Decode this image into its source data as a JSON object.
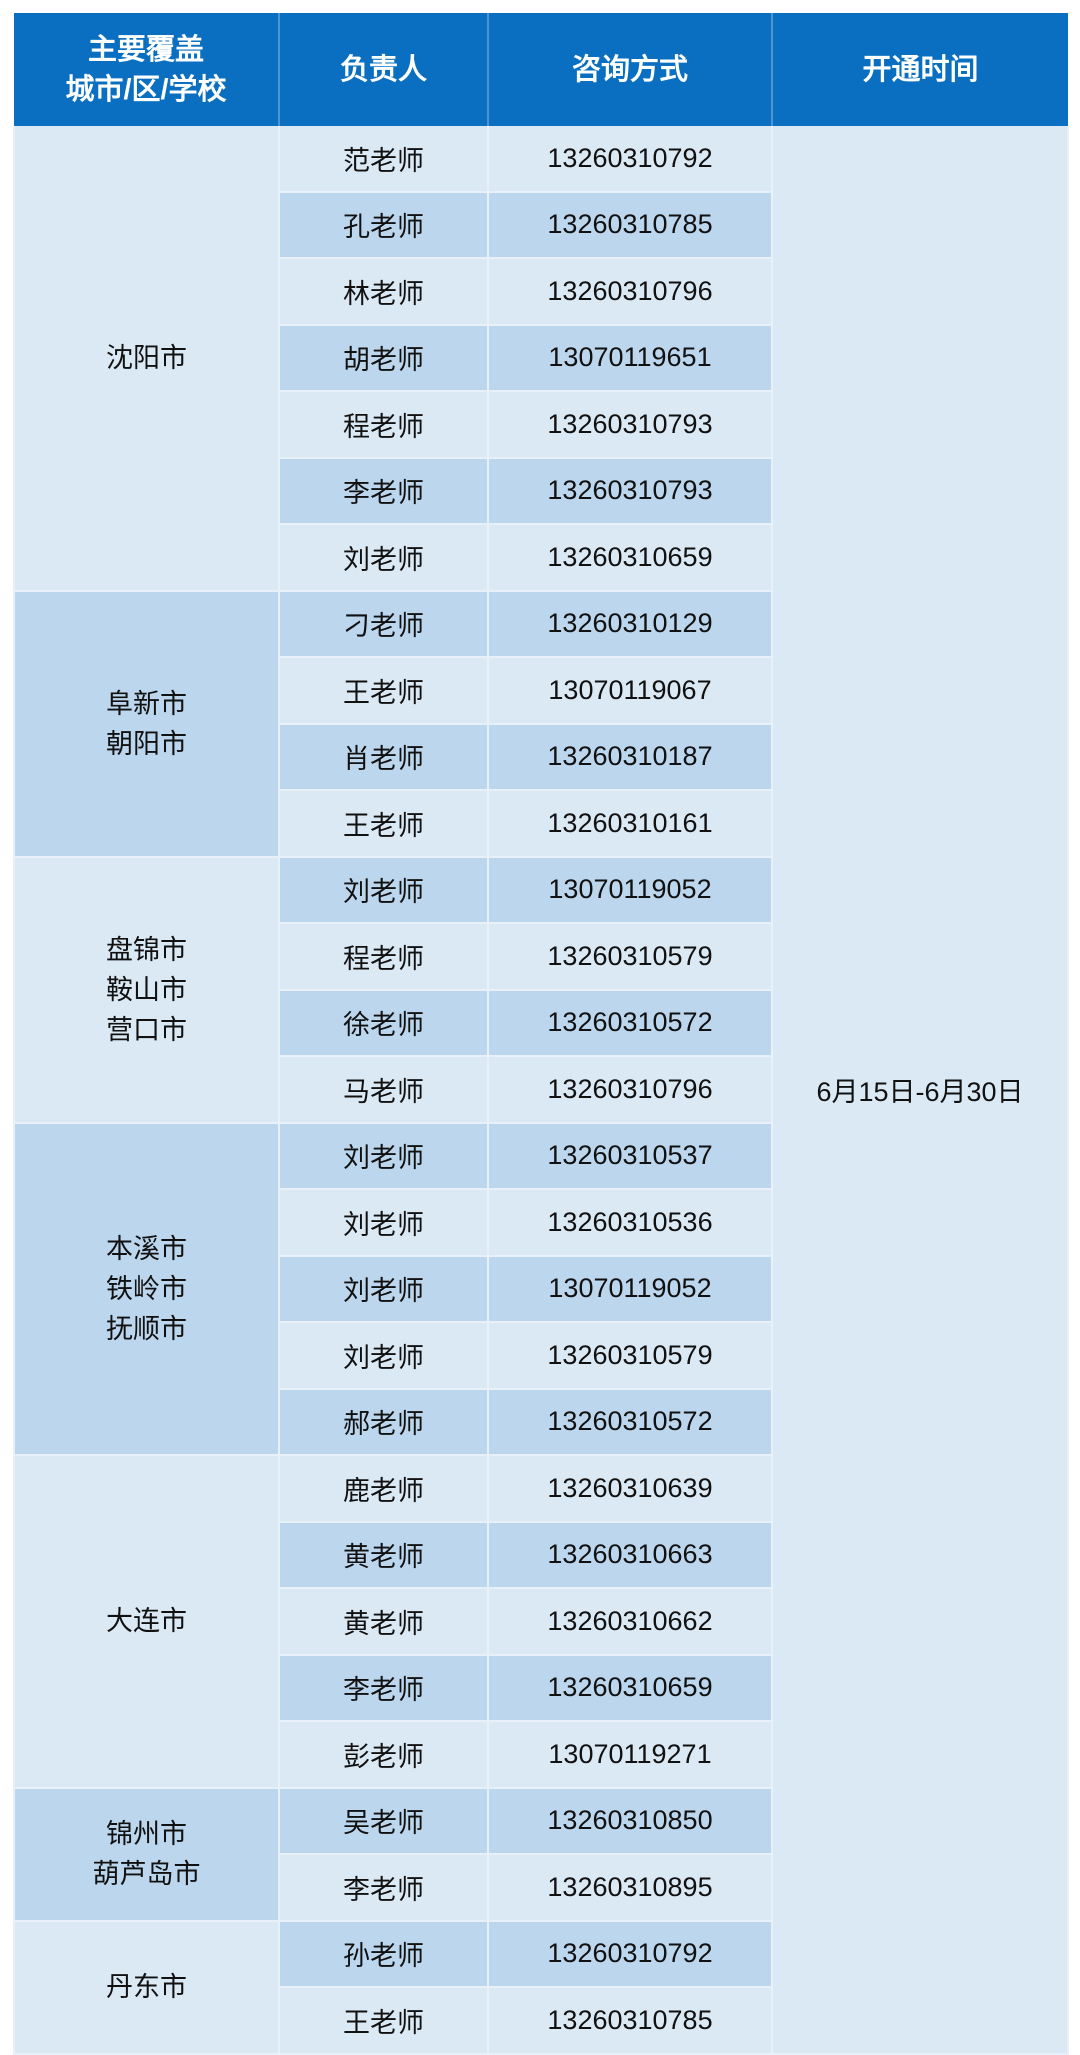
{
  "header": {
    "col1": "主要覆盖\n城市/区/学校",
    "col2": "负责人",
    "col3": "咨询方式",
    "col4": "开通时间"
  },
  "open_time": "6月15日-6月30日",
  "colors": {
    "header": "#0a6fc0",
    "row_light": "#dbe9f5",
    "row_dark": "#bcd6ee"
  },
  "groups": [
    {
      "region": "沈阳市",
      "contacts": [
        {
          "name": "范老师",
          "phone": "13260310792"
        },
        {
          "name": "孔老师",
          "phone": "13260310785"
        },
        {
          "name": "林老师",
          "phone": "13260310796"
        },
        {
          "name": "胡老师",
          "phone": "13070119651"
        },
        {
          "name": "程老师",
          "phone": "13260310793"
        },
        {
          "name": "李老师",
          "phone": "13260310793"
        },
        {
          "name": "刘老师",
          "phone": "13260310659"
        }
      ]
    },
    {
      "region": "阜新市\n朝阳市",
      "contacts": [
        {
          "name": "刁老师",
          "phone": "13260310129"
        },
        {
          "name": "王老师",
          "phone": "13070119067"
        },
        {
          "name": "肖老师",
          "phone": "13260310187"
        },
        {
          "name": "王老师",
          "phone": "13260310161"
        }
      ]
    },
    {
      "region": "盘锦市\n鞍山市\n营口市",
      "contacts": [
        {
          "name": "刘老师",
          "phone": "13070119052"
        },
        {
          "name": "程老师",
          "phone": "13260310579"
        },
        {
          "name": "徐老师",
          "phone": "13260310572"
        },
        {
          "name": "马老师",
          "phone": "13260310796"
        }
      ]
    },
    {
      "region": "本溪市\n铁岭市\n抚顺市",
      "contacts": [
        {
          "name": "刘老师",
          "phone": "13260310537"
        },
        {
          "name": "刘老师",
          "phone": "13260310536"
        },
        {
          "name": "刘老师",
          "phone": "13070119052"
        },
        {
          "name": "刘老师",
          "phone": "13260310579"
        },
        {
          "name": "郝老师",
          "phone": "13260310572"
        }
      ]
    },
    {
      "region": "大连市",
      "contacts": [
        {
          "name": "鹿老师",
          "phone": "13260310639"
        },
        {
          "name": "黄老师",
          "phone": "13260310663"
        },
        {
          "name": "黄老师",
          "phone": "13260310662"
        },
        {
          "name": "李老师",
          "phone": "13260310659"
        },
        {
          "name": "彭老师",
          "phone": "13070119271"
        }
      ]
    },
    {
      "region": "锦州市\n葫芦岛市",
      "contacts": [
        {
          "name": "吴老师",
          "phone": "13260310850"
        },
        {
          "name": "李老师",
          "phone": "13260310895"
        }
      ]
    },
    {
      "region": "丹东市",
      "contacts": [
        {
          "name": "孙老师",
          "phone": "13260310792"
        },
        {
          "name": "王老师",
          "phone": "13260310785"
        }
      ]
    }
  ]
}
